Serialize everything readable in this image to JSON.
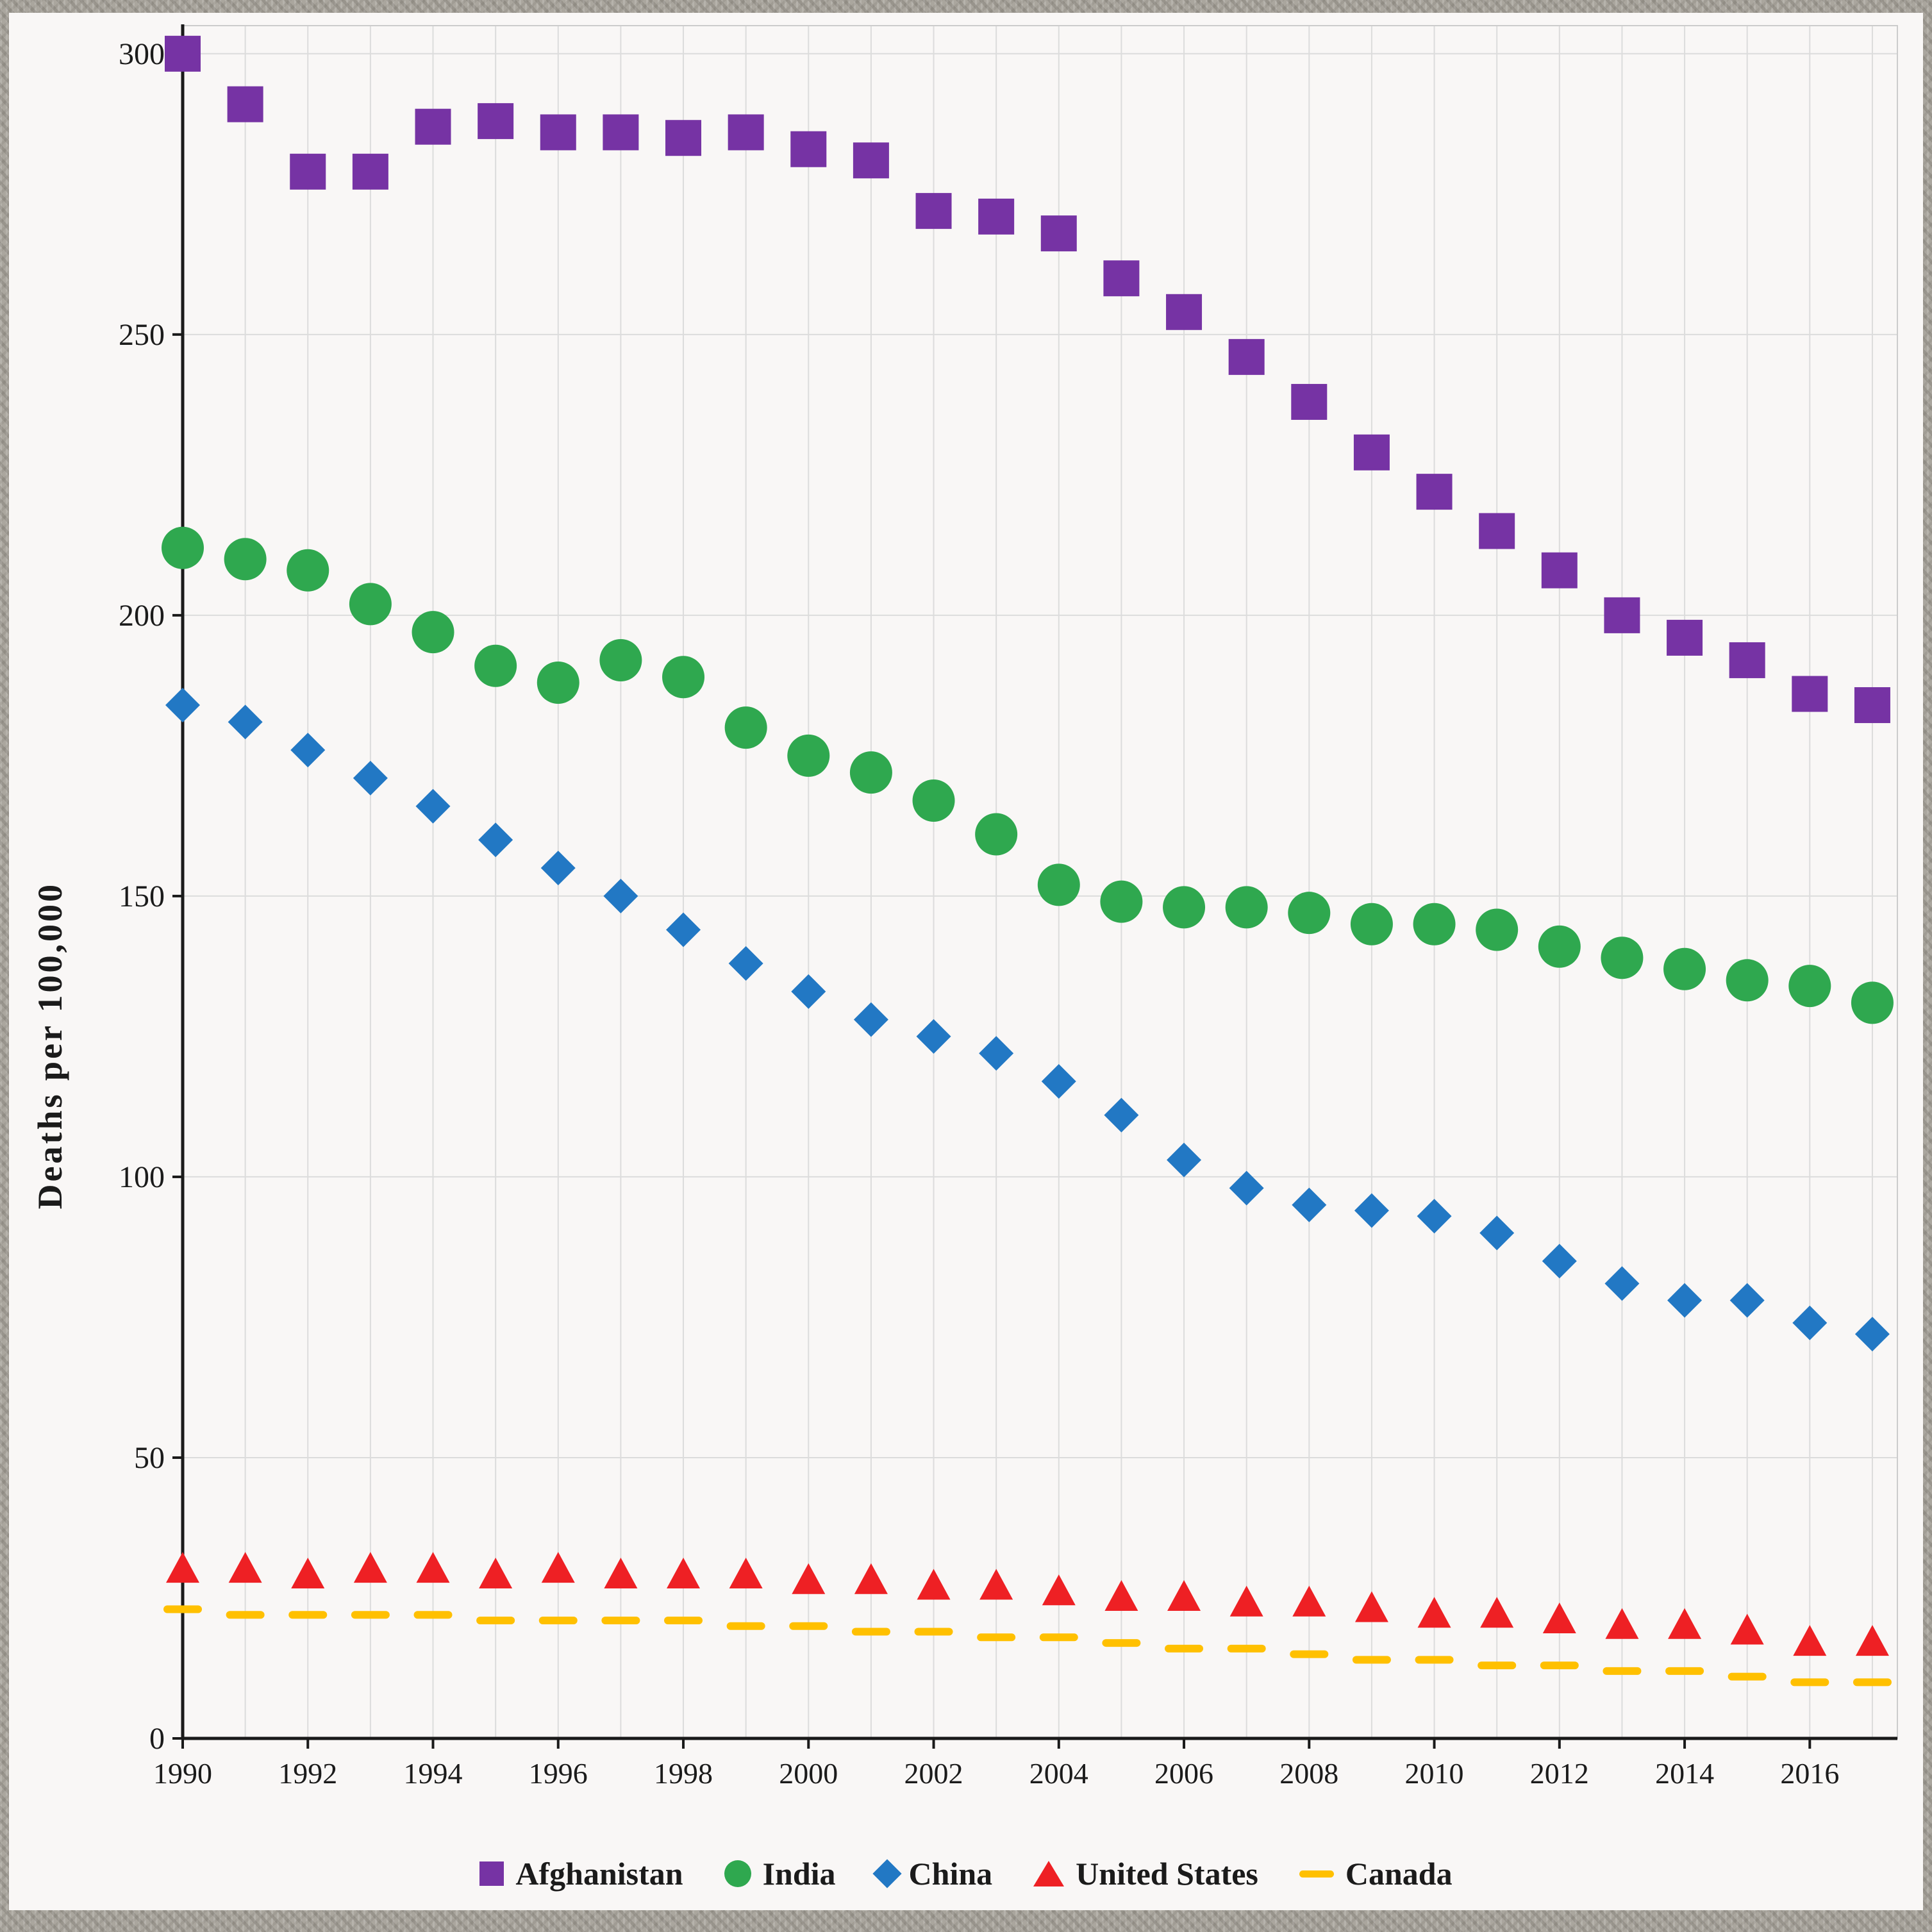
{
  "chart_data": {
    "type": "scatter",
    "title": "",
    "xlabel": "",
    "ylabel": "Deaths per 100,000",
    "xlim": [
      1990,
      2017.4
    ],
    "ylim": [
      0,
      305
    ],
    "y_ticks": [
      0,
      50,
      100,
      150,
      200,
      250,
      300
    ],
    "x_tick_years": [
      1990,
      1992,
      1994,
      1996,
      1998,
      2000,
      2002,
      2004,
      2006,
      2008,
      2010,
      2012,
      2014,
      2016
    ],
    "grid": true,
    "legend_position": "bottom",
    "x": [
      1990,
      1991,
      1992,
      1993,
      1994,
      1995,
      1996,
      1997,
      1998,
      1999,
      2000,
      2001,
      2002,
      2003,
      2004,
      2005,
      2006,
      2007,
      2008,
      2009,
      2010,
      2011,
      2012,
      2013,
      2014,
      2015,
      2016,
      2017
    ],
    "series": [
      {
        "name": "Afghanistan",
        "marker": "square",
        "color": "#7633A4",
        "values": [
          300,
          291,
          279,
          279,
          287,
          288,
          286,
          286,
          285,
          286,
          283,
          281,
          272,
          271,
          268,
          260,
          254,
          246,
          238,
          229,
          222,
          215,
          208,
          200,
          196,
          192,
          186,
          184
        ]
      },
      {
        "name": "India",
        "marker": "circle",
        "color": "#2FA84F",
        "values": [
          212,
          210,
          208,
          202,
          197,
          191,
          188,
          192,
          189,
          180,
          175,
          172,
          167,
          161,
          152,
          149,
          148,
          148,
          147,
          145,
          145,
          144,
          141,
          139,
          137,
          135,
          134,
          131
        ]
      },
      {
        "name": "China",
        "marker": "diamond",
        "color": "#2278C4",
        "values": [
          184,
          181,
          176,
          171,
          166,
          160,
          155,
          150,
          144,
          138,
          133,
          128,
          125,
          122,
          117,
          111,
          103,
          98,
          95,
          94,
          93,
          90,
          85,
          81,
          78,
          78,
          74,
          72
        ]
      },
      {
        "name": "United States",
        "marker": "triangle",
        "color": "#EE2024",
        "values": [
          30,
          30,
          29,
          30,
          30,
          29,
          30,
          29,
          29,
          29,
          28,
          28,
          27,
          27,
          26,
          25,
          25,
          24,
          24,
          23,
          22,
          22,
          21,
          20,
          20,
          19,
          17,
          17
        ]
      },
      {
        "name": "Canada",
        "marker": "dash",
        "color": "#FFC000",
        "values": [
          23,
          22,
          22,
          22,
          22,
          21,
          21,
          21,
          21,
          20,
          20,
          19,
          19,
          18,
          18,
          17,
          16,
          16,
          15,
          14,
          14,
          13,
          13,
          12,
          12,
          11,
          10,
          10
        ]
      }
    ],
    "style": {
      "axis_color": "#1a1a1a",
      "grid_color": "#dcdcdc",
      "plot_border_color": "#cccccc",
      "plot_bg": "#f9f7f6",
      "tick_label_color": "#1b1b1b"
    }
  }
}
